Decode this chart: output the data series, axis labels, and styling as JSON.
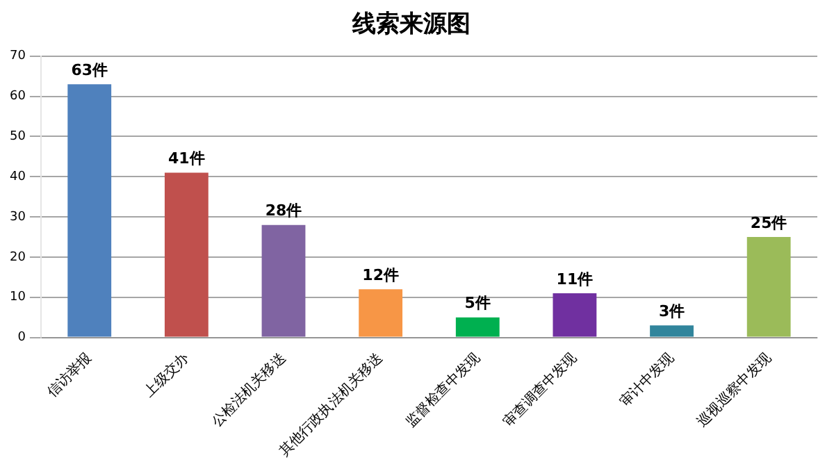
{
  "chart_data": {
    "type": "bar",
    "title": "线索来源图",
    "categories": [
      "信访举报",
      "上级交办",
      "公检法机关移送",
      "其他行政执法机关移送",
      "监督检查中发现",
      "审查调查中发现",
      "审计中发现",
      "巡视巡察中发现"
    ],
    "values": [
      63,
      41,
      28,
      12,
      5,
      11,
      3,
      25
    ],
    "value_labels": [
      "63件",
      "41件",
      "28件",
      "12件",
      "5件",
      "11件",
      "3件",
      "25件"
    ],
    "colors": [
      "#4f81bd",
      "#c0504d",
      "#8064a2",
      "#f79646",
      "#00b050",
      "#7030a0",
      "#31859c",
      "#9bbb59"
    ],
    "ylim": [
      0,
      70
    ],
    "yticks": [
      0,
      10,
      20,
      30,
      40,
      50,
      60,
      70
    ],
    "grid": "y",
    "legend": false
  }
}
